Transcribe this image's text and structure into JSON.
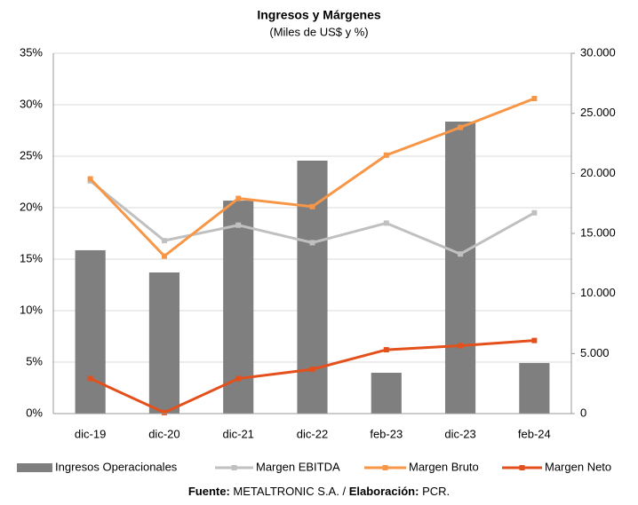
{
  "chart_data": {
    "type": "combo",
    "title": "Ingresos y Márgenes",
    "subtitle": "(Miles de US$ y %)",
    "categories": [
      "dic-19",
      "dic-20",
      "dic-21",
      "dic-22",
      "feb-23",
      "dic-23",
      "feb-24"
    ],
    "series": [
      {
        "name": "Ingresos Operacionales",
        "type": "bar",
        "axis": "y2",
        "color": "#7f7f7f",
        "values": [
          13600,
          11750,
          17730,
          21060,
          3400,
          24310,
          4210
        ]
      },
      {
        "name": "Margen EBITDA",
        "type": "line",
        "color": "#c0c0c0",
        "values": [
          22.6,
          16.8,
          18.3,
          16.6,
          18.5,
          15.5,
          19.5
        ]
      },
      {
        "name": "Margen Bruto",
        "type": "line",
        "color": "#f79646",
        "values": [
          22.8,
          15.3,
          20.9,
          20.1,
          25.1,
          27.8,
          30.6
        ]
      },
      {
        "name": "Margen Neto",
        "type": "line",
        "color": "#e4501c",
        "values": [
          3.4,
          0.1,
          3.4,
          4.3,
          6.2,
          6.6,
          7.1
        ]
      }
    ],
    "ylim": [
      0,
      35
    ],
    "yticks": [
      {
        "value": 0,
        "label": "0%"
      },
      {
        "value": 5,
        "label": "5%"
      },
      {
        "value": 10,
        "label": "10%"
      },
      {
        "value": 15,
        "label": "15%"
      },
      {
        "value": 20,
        "label": "20%"
      },
      {
        "value": 25,
        "label": "25%"
      },
      {
        "value": 30,
        "label": "30%"
      },
      {
        "value": 35,
        "label": "35%"
      }
    ],
    "y2lim": [
      0,
      30000
    ],
    "y2ticks": [
      0,
      {
        "value": 5000,
        "label": "5.000"
      },
      {
        "value": 10000,
        "label": "10.000"
      },
      {
        "value": 15000,
        "label": "15.000"
      },
      {
        "value": 20000,
        "label": "20.000"
      },
      {
        "value": 25000,
        "label": "25.000"
      },
      {
        "value": 30000,
        "label": "30.000"
      }
    ],
    "grid": true,
    "legend": "bottom",
    "source": [
      "Fuente:",
      "METALTRONIC S.A. /",
      "Elaboración:",
      "PCR."
    ]
  }
}
